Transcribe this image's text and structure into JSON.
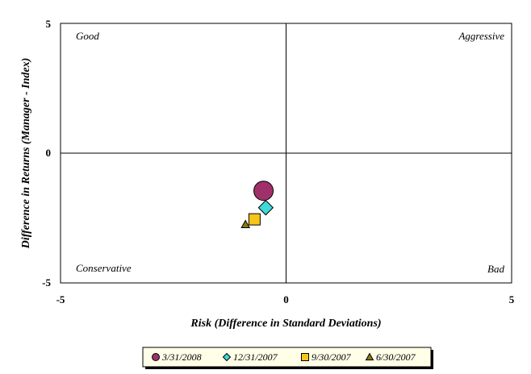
{
  "chart_data": {
    "type": "scatter",
    "title": "",
    "xlabel": "Risk (Difference in Standard Deviations)",
    "ylabel": "Difference in Returns (Manager - Index)",
    "xlim": [
      -5,
      5
    ],
    "ylim": [
      -5,
      5
    ],
    "x_ticks": [
      "-5",
      "0",
      "5"
    ],
    "y_ticks": [
      "5",
      "0",
      "-5"
    ],
    "grid": false,
    "legend_position": "bottom",
    "quadrant_labels": {
      "top_left": "Good",
      "top_right": "Aggressive",
      "bottom_left": "Conservative",
      "bottom_right": "Bad"
    },
    "series": [
      {
        "name": "3/31/2008",
        "marker": "circle",
        "color": "#A0306A",
        "x": -0.5,
        "y": -1.45
      },
      {
        "name": "12/31/2007",
        "marker": "diamond",
        "color": "#40D8D8",
        "x": -0.45,
        "y": -2.1
      },
      {
        "name": "9/30/2007",
        "marker": "square",
        "color": "#F5C518",
        "x": -0.7,
        "y": -2.55
      },
      {
        "name": "6/30/2007",
        "marker": "triangle",
        "color": "#8A7A10",
        "x": -0.9,
        "y": -2.75
      }
    ]
  }
}
